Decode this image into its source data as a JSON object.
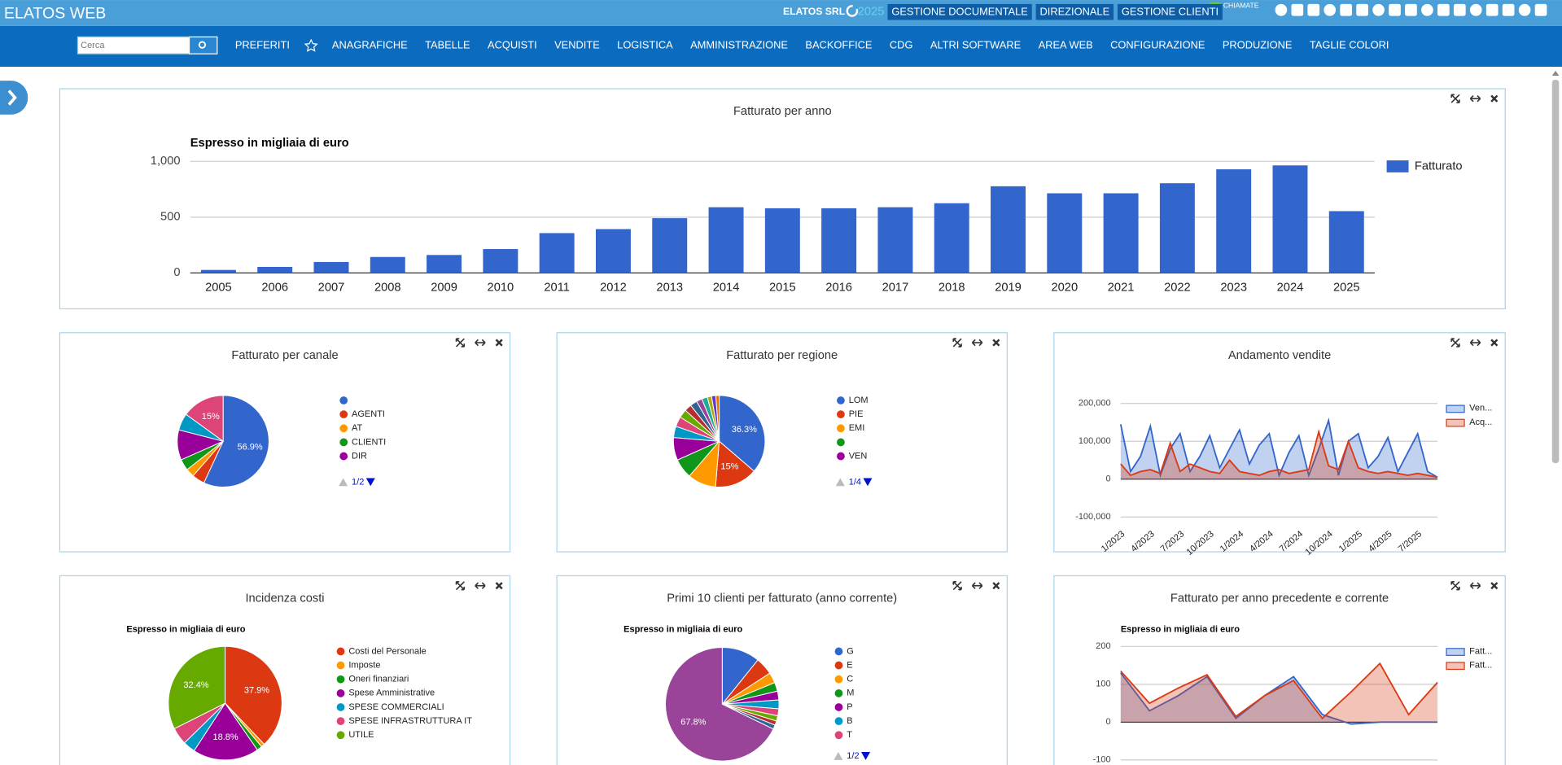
{
  "header": {
    "brand": "ELATOS WEB",
    "company": "ELATOS SRL",
    "year": "2025",
    "buttons": [
      "GESTIONE DOCUMENTALE",
      "DIREZIONALE",
      "GESTIONE CLIENTI"
    ],
    "calls": "CHIAMATE"
  },
  "nav": {
    "search": "Cerca",
    "items": [
      "PREFERITI",
      "ANAGRAFICHE",
      "TABELLE",
      "ACQUISTI",
      "VENDITE",
      "LOGISTICA",
      "AMMINISTRAZIONE",
      "BACKOFFICE",
      "CDG",
      "ALTRI SOFTWARE",
      "AREA WEB",
      "CONFIGURAZIONE",
      "PRODUZIONE",
      "TAGLIE COLORI"
    ]
  },
  "widgets": [
    {
      "chart_data": {
        "type": "bar",
        "title": "Fatturato per anno",
        "subtitle": "Espresso in migliaia di euro",
        "categories": [
          "2005",
          "2006",
          "2007",
          "2008",
          "2009",
          "2010",
          "2011",
          "2012",
          "2013",
          "2014",
          "2015",
          "2016",
          "2017",
          "2018",
          "2019",
          "2020",
          "2021",
          "2022",
          "2023",
          "2024",
          "2025"
        ],
        "series": [
          {
            "name": "Fatturato",
            "color": "#3366cc",
            "values": [
              27,
              54,
              98,
              143,
              161,
              214,
              357,
              393,
              491,
              589,
              580,
              580,
              589,
              625,
              777,
              714,
              714,
              804,
              929,
              964,
              554
            ]
          }
        ],
        "ylim": [
          0,
          1000
        ],
        "yticks": [
          0,
          500,
          {
            "value": 1000,
            "label": "1,000"
          }
        ],
        "grid": true
      }
    },
    {
      "chart_data": {
        "type": "pie",
        "title": "Fatturato per canale",
        "categories": [
          null,
          "AGENTI",
          "AT",
          "CLIENTI",
          "DIR",
          null,
          null
        ],
        "values": [
          56.9,
          4.5,
          3,
          4,
          10.6,
          6,
          15
        ],
        "value_labels": [
          "56.9%",
          null,
          null,
          null,
          null,
          null,
          "15%"
        ],
        "colors": [
          "#3366cc",
          "#dc3912",
          "#ff9900",
          "#109618",
          "#990099",
          "#0099c6",
          "#dd4477"
        ],
        "pager": "1/2"
      }
    },
    {
      "chart_data": {
        "type": "pie",
        "title": "Fatturato per regione",
        "categories": [
          "LOM",
          "PIE",
          "EMI",
          null,
          "VEN",
          null,
          null,
          null,
          null,
          null,
          null,
          null,
          null,
          null,
          null
        ],
        "values": [
          36.3,
          15,
          10,
          7,
          8,
          4,
          3.5,
          3,
          2.5,
          2.5,
          2,
          2,
          1.5,
          1.5,
          1.2
        ],
        "value_labels": [
          "36.3%",
          "15%",
          null,
          null,
          null,
          null,
          null,
          null,
          null,
          null,
          null,
          null,
          null,
          null,
          null
        ],
        "colors": [
          "#3366cc",
          "#dc3912",
          "#ff9900",
          "#109618",
          "#990099",
          "#0099c6",
          "#dd4477",
          "#66aa00",
          "#b82e2e",
          "#316395",
          "#994499",
          "#22aa99",
          "#aaaa11",
          "#6633cc",
          "#e67300"
        ],
        "pager": "1/4"
      }
    },
    {
      "chart_data": {
        "type": "area",
        "title": "Andamento vendite",
        "categories": [
          "1/2023",
          null,
          null,
          "4/2023",
          null,
          null,
          "7/2023",
          null,
          null,
          "10/2023",
          null,
          null,
          "1/2024",
          null,
          null,
          "4/2024",
          null,
          null,
          "7/2024",
          null,
          null,
          "10/2024",
          null,
          null,
          "1/2025",
          null,
          null,
          "4/2025",
          null,
          null,
          "7/2025",
          null,
          null
        ],
        "series": [
          {
            "name": "Ven...",
            "color": "#3366cc",
            "values": [
              145000,
              20000,
              60000,
              140000,
              10000,
              80000,
              120000,
              20000,
              60000,
              115000,
              30000,
              80000,
              130000,
              40000,
              90000,
              120000,
              10000,
              70000,
              115000,
              10000,
              80000,
              155000,
              10000,
              100000,
              120000,
              30000,
              60000,
              110000,
              20000,
              70000,
              120000,
              20000,
              5000
            ]
          },
          {
            "name": "Acq...",
            "color": "#dc3912",
            "values": [
              40000,
              10000,
              20000,
              25000,
              15000,
              95000,
              20000,
              40000,
              30000,
              20000,
              15000,
              50000,
              20000,
              15000,
              10000,
              20000,
              25000,
              15000,
              20000,
              25000,
              125000,
              35000,
              25000,
              100000,
              30000,
              20000,
              15000,
              20000,
              15000,
              10000,
              15000,
              10000,
              5000
            ]
          }
        ],
        "ylim": [
          -100000,
          200000
        ],
        "yticks": [
          {
            "value": -100000,
            "label": "-100,000"
          },
          0,
          {
            "value": 100000,
            "label": "100,000"
          },
          {
            "value": 200000,
            "label": "200,000"
          }
        ],
        "grid": true
      }
    },
    {
      "chart_data": {
        "type": "pie",
        "title": "Incidenza costi",
        "subtitle": "Espresso in migliaia di euro",
        "categories": [
          "Costi del Personale",
          "Imposte",
          "Oneri finanziari",
          "Spese Amministrative",
          "SPESE COMMERCIALI",
          "SPESE INFRASTRUTTURA IT",
          "UTILE"
        ],
        "values": [
          37.9,
          1,
          1.5,
          18.8,
          3.5,
          4.9,
          32.4
        ],
        "value_labels": [
          "37.9%",
          null,
          null,
          "18.8%",
          null,
          null,
          "32.4%"
        ],
        "colors": [
          "#dc3912",
          "#ff9900",
          "#109618",
          "#990099",
          "#0099c6",
          "#dd4477",
          "#66aa00"
        ]
      }
    },
    {
      "chart_data": {
        "type": "pie",
        "title": "Primi 10 clienti per fatturato (anno corrente)",
        "subtitle": "Espresso in migliaia di euro",
        "categories": [
          "G",
          "E",
          "C",
          "M",
          "P",
          "B",
          "T",
          null,
          null,
          null,
          null
        ],
        "values": [
          10.8,
          5,
          3,
          2.5,
          2.5,
          2.5,
          2,
          1.5,
          1.2,
          1.2,
          67.8
        ],
        "value_labels": [
          null,
          null,
          null,
          null,
          null,
          null,
          null,
          null,
          null,
          null,
          "67.8%"
        ],
        "colors": [
          "#3366cc",
          "#dc3912",
          "#ff9900",
          "#109618",
          "#990099",
          "#0099c6",
          "#dd4477",
          "#66aa00",
          "#b82e2e",
          "#316395",
          "#994499"
        ],
        "pager": "1/2"
      }
    },
    {
      "chart_data": {
        "type": "area",
        "title": "Fatturato per anno precedente e corrente",
        "subtitle": "Espresso in migliaia di euro",
        "categories": [
          null,
          null,
          null,
          null,
          null,
          null,
          null,
          null,
          null,
          null,
          null,
          null
        ],
        "series": [
          {
            "name": "Fatt...",
            "color": "#3366cc",
            "values": [
              130,
              30,
              70,
              120,
              10,
              70,
              120,
              20,
              -5,
              0,
              0,
              0
            ]
          },
          {
            "name": "Fatt...",
            "color": "#dc3912",
            "values": [
              135,
              50,
              90,
              125,
              15,
              70,
              110,
              10,
              80,
              155,
              20,
              105
            ]
          }
        ],
        "ylim": [
          -100,
          200
        ],
        "yticks": [
          -100,
          0,
          100,
          200
        ],
        "grid": true
      }
    }
  ]
}
